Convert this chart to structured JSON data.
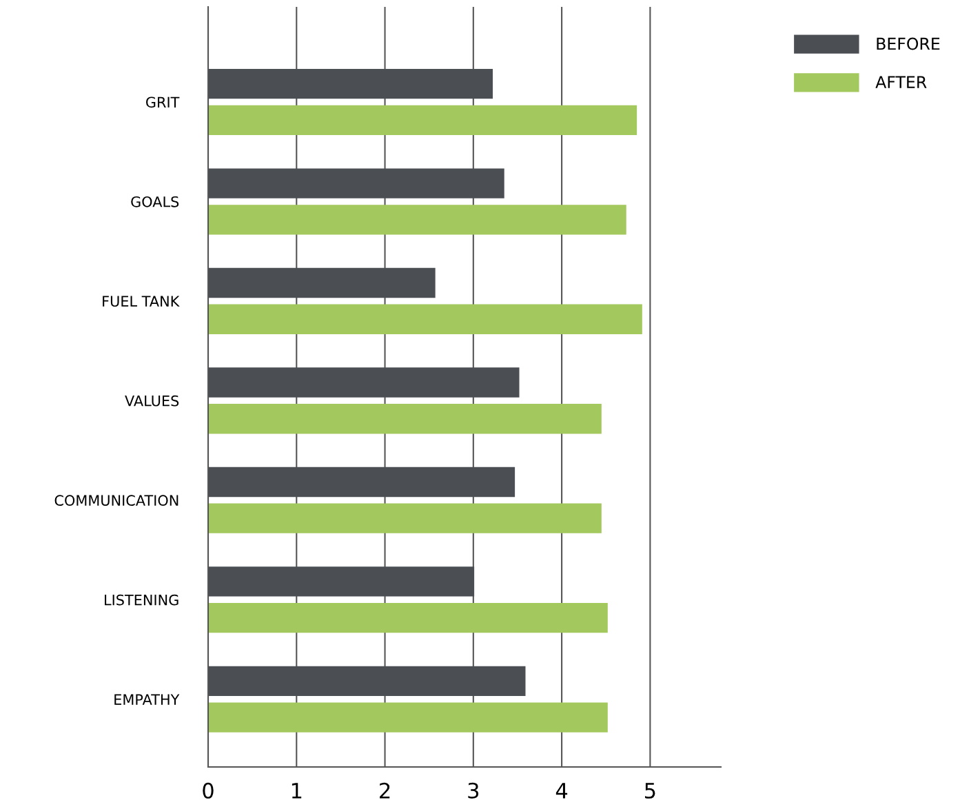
{
  "chart_data": {
    "type": "bar",
    "orientation": "horizontal",
    "categories": [
      "GRIT",
      "GOALS",
      "FUEL TANK",
      "VALUES",
      "COMMUNICATION",
      "LISTENING",
      "EMPATHY"
    ],
    "series": [
      {
        "name": "BEFORE",
        "color": "#4b4f54",
        "values": [
          3.22,
          3.35,
          2.57,
          3.52,
          3.47,
          3.01,
          3.59
        ]
      },
      {
        "name": "AFTER",
        "color": "#a3c85d",
        "values": [
          4.85,
          4.73,
          4.91,
          4.45,
          4.45,
          4.52,
          4.52
        ]
      }
    ],
    "xlim": [
      0,
      5.8
    ],
    "xticks": [
      0,
      1,
      2,
      3,
      4,
      5
    ],
    "grid": "x",
    "legend": "top right"
  }
}
